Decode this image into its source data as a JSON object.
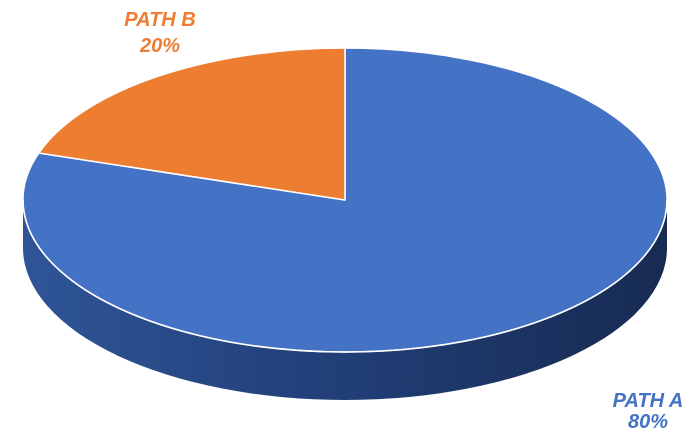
{
  "chart_data": {
    "type": "pie",
    "style": "3d",
    "title": "",
    "categories": [
      "PATH A",
      "PATH B"
    ],
    "values": [
      80,
      20
    ],
    "value_labels": [
      "80%",
      "20%"
    ],
    "colors": [
      "#4472C4",
      "#ED7D31"
    ],
    "legend": "none",
    "data_label_colors": [
      "#4472C4",
      "#ED7D31"
    ]
  }
}
